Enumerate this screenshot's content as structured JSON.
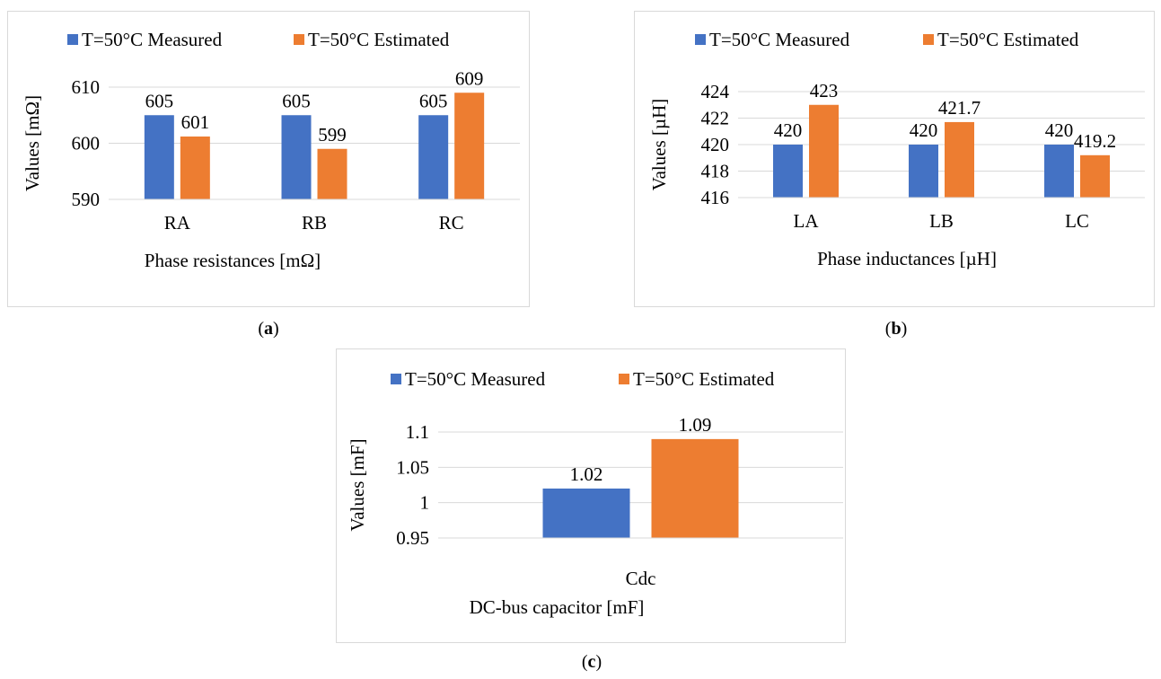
{
  "colors": {
    "measured": "#4472C4",
    "estimated": "#ED7D31",
    "grid": "#d9d9d9",
    "axis": "#d9d9d9"
  },
  "captions": {
    "a": "a",
    "b": "b",
    "c": "c"
  },
  "chart_data": [
    {
      "type": "bar",
      "id": "a",
      "categories": [
        "RA",
        "RB",
        "RC"
      ],
      "series": [
        {
          "name": "T=50°C Measured",
          "values": [
            605,
            605,
            605
          ],
          "labels": [
            "605",
            "605",
            "605"
          ]
        },
        {
          "name": "T=50°C Estimated",
          "values": [
            601.2,
            599,
            609
          ],
          "labels": [
            "601",
            "599",
            "609"
          ]
        }
      ],
      "title": "",
      "xlabel": "Phase resistances [mΩ]",
      "ylabel": "Values [mΩ]",
      "ylim": [
        590,
        610
      ],
      "yticks": [
        "590",
        "600",
        "610"
      ],
      "grid": true,
      "legend": "top"
    },
    {
      "type": "bar",
      "id": "b",
      "categories": [
        "LA",
        "LB",
        "LC"
      ],
      "series": [
        {
          "name": "T=50°C Measured",
          "values": [
            420,
            420,
            420
          ],
          "labels": [
            "420",
            "420",
            "420"
          ]
        },
        {
          "name": "T=50°C Estimated",
          "values": [
            423,
            421.7,
            419.2
          ],
          "labels": [
            "423",
            "421.7",
            "419.2"
          ]
        }
      ],
      "title": "",
      "xlabel": "Phase inductances [µH]",
      "ylabel": "Values [µH]",
      "ylim": [
        416,
        424
      ],
      "yticks": [
        "416",
        "418",
        "420",
        "422",
        "424"
      ],
      "grid": true,
      "legend": "top"
    },
    {
      "type": "bar",
      "id": "c",
      "categories": [
        "Cdc"
      ],
      "series": [
        {
          "name": "T=50°C Measured",
          "values": [
            1.02
          ],
          "labels": [
            "1.02"
          ]
        },
        {
          "name": "T=50°C Estimated",
          "values": [
            1.09
          ],
          "labels": [
            "1.09"
          ]
        }
      ],
      "title": "",
      "xlabel": "DC-bus capacitor [mF]",
      "ylabel": "Values [mF]",
      "ylim": [
        0.95,
        1.1
      ],
      "yticks": [
        "0.95",
        "1",
        "1.05",
        "1.1"
      ],
      "grid": true,
      "legend": "top"
    }
  ]
}
